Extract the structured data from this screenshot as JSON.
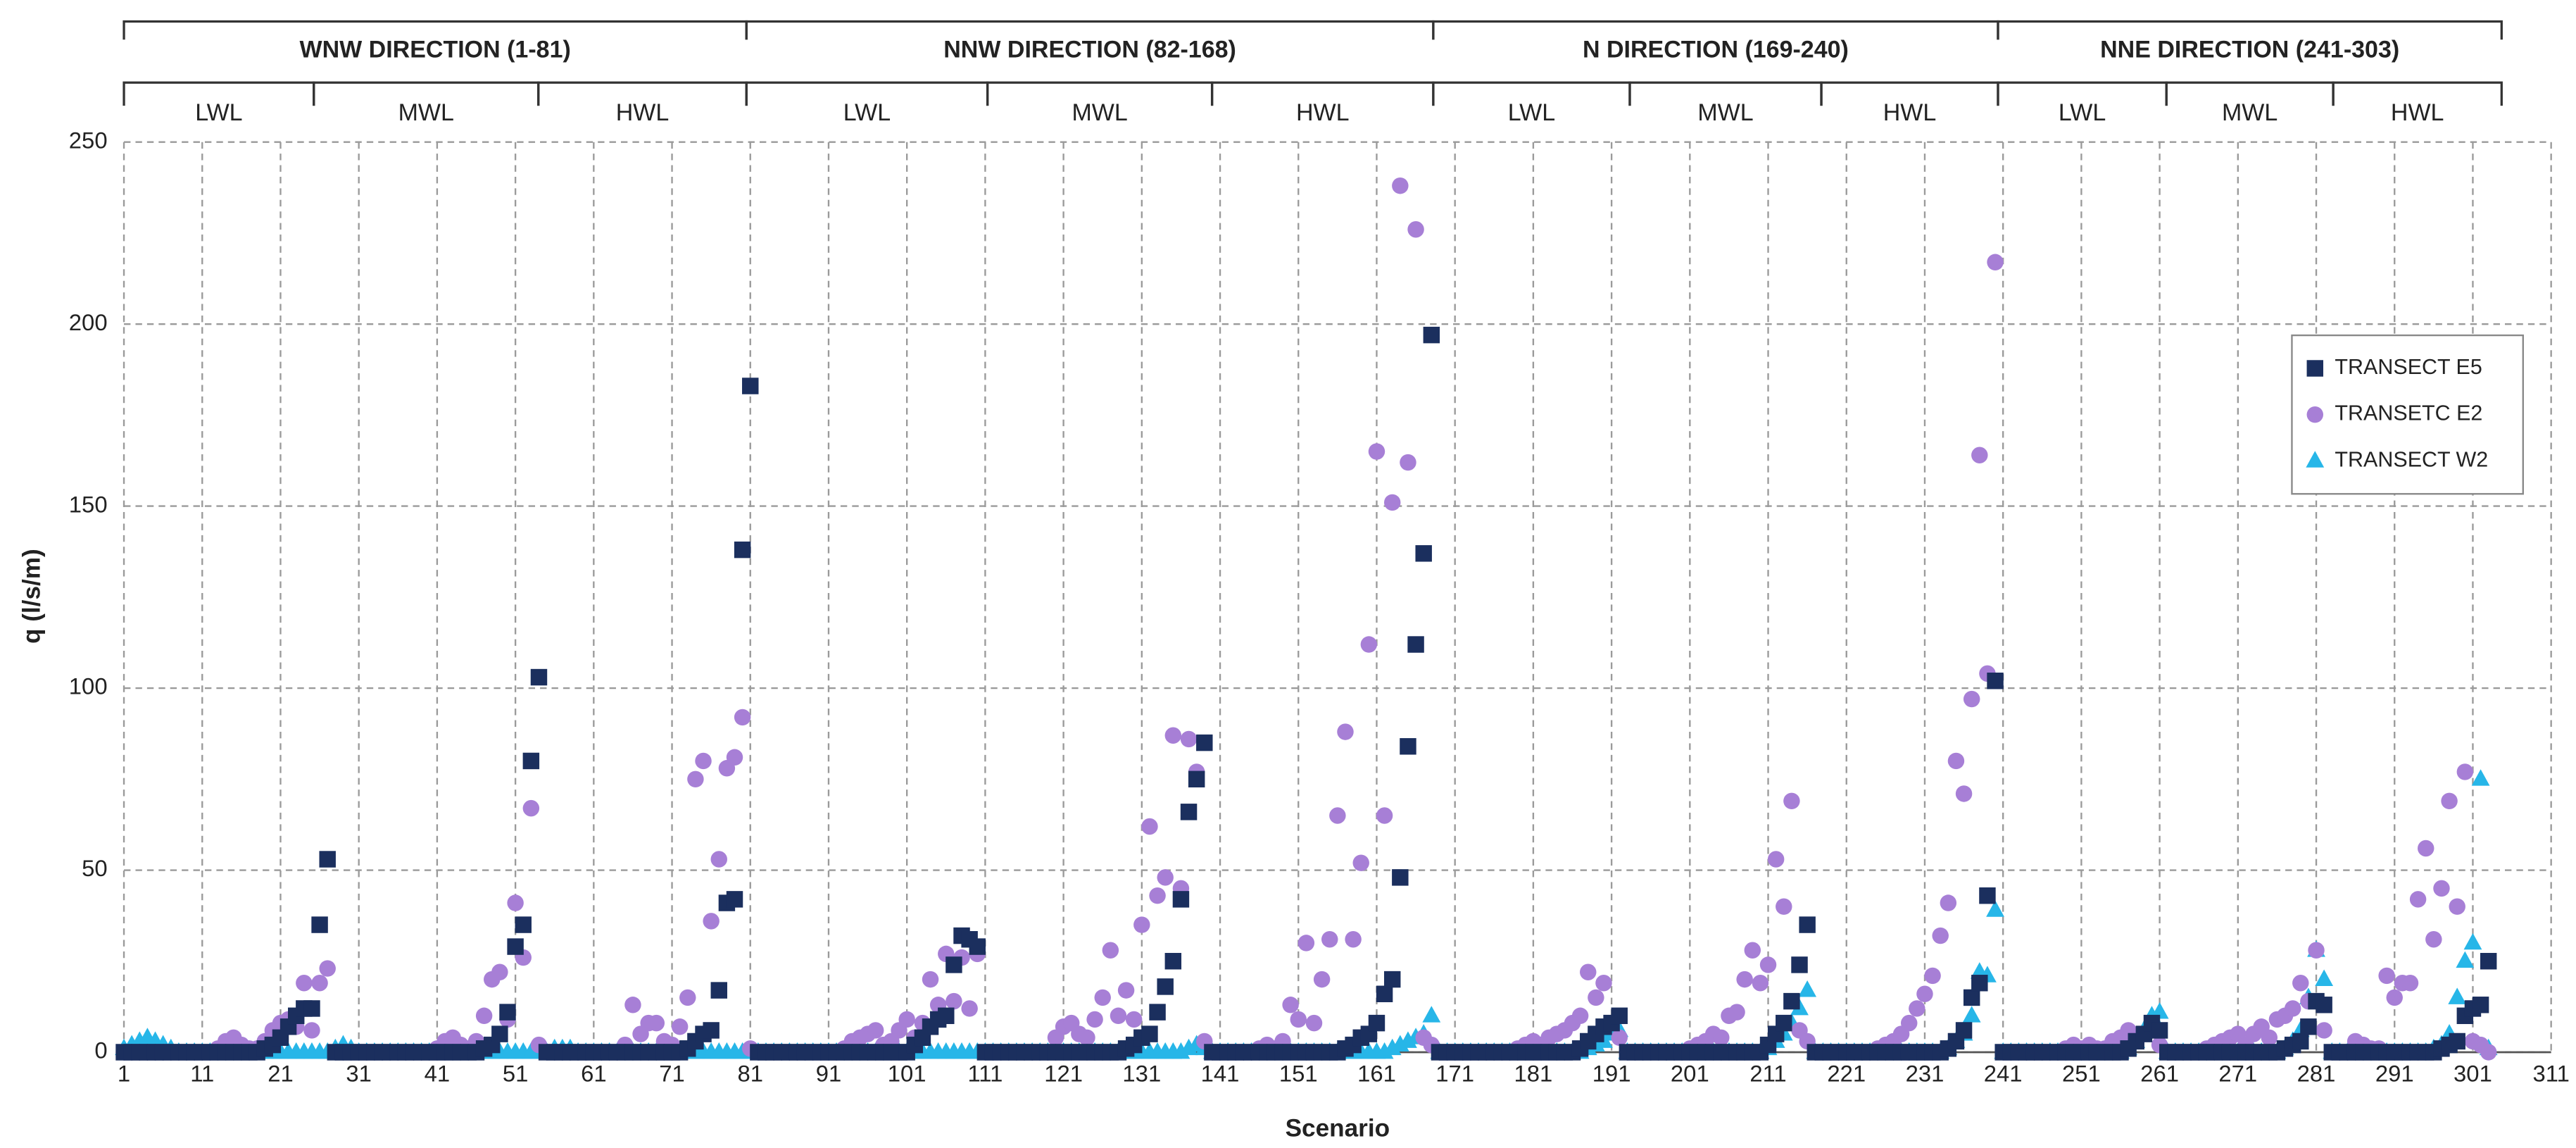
{
  "chart_data": {
    "type": "scatter",
    "xlabel": "Scenario",
    "ylabel": "q (l/s/m)",
    "xlim": [
      1,
      311
    ],
    "xticks": [
      1,
      11,
      21,
      31,
      41,
      51,
      61,
      71,
      81,
      91,
      101,
      111,
      121,
      131,
      141,
      151,
      161,
      171,
      181,
      191,
      201,
      211,
      221,
      231,
      241,
      251,
      261,
      271,
      281,
      291,
      301,
      311
    ],
    "ylim": [
      0,
      250
    ],
    "yticks": [
      0,
      50,
      100,
      150,
      200,
      250
    ],
    "grid": true,
    "legend_position": "right",
    "groups": [
      {
        "label": "WNW DIRECTION (1-81)",
        "levels": [
          "LWL",
          "MWL",
          "HWL"
        ]
      },
      {
        "label": "NNW DIRECTION (82-168)",
        "levels": [
          "LWL",
          "MWL",
          "HWL"
        ]
      },
      {
        "label": "N DIRECTION (169-240)",
        "levels": [
          "LWL",
          "MWL",
          "HWL"
        ]
      },
      {
        "label": "NNE DIRECTION (241-303)",
        "levels": [
          "LWL",
          "MWL",
          "HWL"
        ]
      }
    ],
    "x": [
      1,
      2,
      3,
      4,
      5,
      6,
      7,
      8,
      9,
      10,
      11,
      12,
      13,
      14,
      15,
      16,
      17,
      18,
      19,
      20,
      21,
      22,
      23,
      24,
      25,
      26,
      27,
      28,
      29,
      30,
      31,
      32,
      33,
      34,
      35,
      36,
      37,
      38,
      39,
      40,
      41,
      42,
      43,
      44,
      45,
      46,
      47,
      48,
      49,
      50,
      51,
      52,
      53,
      54,
      55,
      56,
      57,
      58,
      59,
      60,
      61,
      62,
      63,
      64,
      65,
      66,
      67,
      68,
      69,
      70,
      71,
      72,
      73,
      74,
      75,
      76,
      77,
      78,
      79,
      80,
      81,
      82,
      83,
      84,
      85,
      86,
      87,
      88,
      89,
      90,
      91,
      92,
      93,
      94,
      95,
      96,
      97,
      98,
      99,
      100,
      101,
      102,
      103,
      104,
      105,
      106,
      107,
      108,
      109,
      110,
      111,
      112,
      113,
      114,
      115,
      116,
      117,
      118,
      119,
      120,
      121,
      122,
      123,
      124,
      125,
      126,
      127,
      128,
      129,
      130,
      131,
      132,
      133,
      134,
      135,
      136,
      137,
      138,
      139,
      140,
      141,
      142,
      143,
      144,
      145,
      146,
      147,
      148,
      149,
      150,
      151,
      152,
      153,
      154,
      155,
      156,
      157,
      158,
      159,
      160,
      161,
      162,
      163,
      164,
      165,
      166,
      167,
      168,
      169,
      170,
      171,
      172,
      173,
      174,
      175,
      176,
      177,
      178,
      179,
      180,
      181,
      182,
      183,
      184,
      185,
      186,
      187,
      188,
      189,
      190,
      191,
      192,
      193,
      194,
      195,
      196,
      197,
      198,
      199,
      200,
      201,
      202,
      203,
      204,
      205,
      206,
      207,
      208,
      209,
      210,
      211,
      212,
      213,
      214,
      215,
      216,
      217,
      218,
      219,
      220,
      221,
      222,
      223,
      224,
      225,
      226,
      227,
      228,
      229,
      230,
      231,
      232,
      233,
      234,
      235,
      236,
      237,
      238,
      239,
      240,
      241,
      242,
      243,
      244,
      245,
      246,
      247,
      248,
      249,
      250,
      251,
      252,
      253,
      254,
      255,
      256,
      257,
      258,
      259,
      260,
      261,
      262,
      263,
      264,
      265,
      266,
      267,
      268,
      269,
      270,
      271,
      272,
      273,
      274,
      275,
      276,
      277,
      278,
      279,
      280,
      281,
      282,
      283,
      284,
      285,
      286,
      287,
      288,
      289,
      290,
      291,
      292,
      293,
      294,
      295,
      296,
      297,
      298,
      299,
      300,
      301,
      302,
      303
    ],
    "series": [
      {
        "name": "TRANSECT E5",
        "color": "#1b2f5e",
        "marker": "square",
        "values": [
          0,
          0,
          0,
          0,
          0,
          0,
          0,
          0,
          0,
          0,
          0,
          0,
          0,
          0,
          0,
          0,
          0,
          0,
          1,
          2,
          4,
          7,
          10,
          12,
          12,
          35,
          53,
          0,
          0,
          0,
          0,
          0,
          0,
          0,
          0,
          0,
          0,
          0,
          0,
          0,
          0,
          0,
          0,
          0,
          0,
          0,
          1,
          2,
          5,
          11,
          29,
          35,
          80,
          103,
          0,
          0,
          0,
          0,
          0,
          0,
          0,
          0,
          0,
          0,
          0,
          0,
          0,
          0,
          0,
          0,
          0,
          0,
          1,
          3,
          5,
          6,
          17,
          41,
          42,
          138,
          183,
          0,
          0,
          0,
          0,
          0,
          0,
          0,
          0,
          0,
          0,
          0,
          0,
          0,
          0,
          0,
          0,
          0,
          0,
          0,
          0,
          2,
          4,
          7,
          9,
          10,
          24,
          32,
          31,
          29,
          0,
          0,
          0,
          0,
          0,
          0,
          0,
          0,
          0,
          0,
          0,
          0,
          0,
          0,
          0,
          0,
          0,
          0,
          1,
          2,
          4,
          5,
          11,
          18,
          25,
          42,
          66,
          75,
          85,
          0,
          0,
          0,
          0,
          0,
          0,
          0,
          0,
          0,
          0,
          0,
          0,
          0,
          0,
          0,
          0,
          0,
          1,
          2,
          4,
          5,
          8,
          16,
          20,
          48,
          84,
          112,
          137,
          197,
          0,
          0,
          0,
          0,
          0,
          0,
          0,
          0,
          0,
          0,
          0,
          0,
          0,
          0,
          0,
          0,
          0,
          0,
          1,
          3,
          5,
          7,
          8,
          10,
          0,
          0,
          0,
          0,
          0,
          0,
          0,
          0,
          0,
          0,
          0,
          0,
          0,
          0,
          0,
          0,
          0,
          0,
          2,
          5,
          8,
          14,
          24,
          35,
          0,
          0,
          0,
          0,
          0,
          0,
          0,
          0,
          0,
          0,
          0,
          0,
          0,
          0,
          0,
          0,
          0,
          1,
          3,
          6,
          15,
          19,
          43,
          102,
          0,
          0,
          0,
          0,
          0,
          0,
          0,
          0,
          0,
          0,
          0,
          0,
          0,
          0,
          0,
          0,
          1,
          3,
          5,
          8,
          6,
          0,
          0,
          0,
          0,
          0,
          0,
          0,
          0,
          0,
          0,
          0,
          0,
          0,
          0,
          0,
          1,
          2,
          3,
          7,
          14,
          13,
          0,
          0,
          0,
          0,
          0,
          0,
          0,
          0,
          0,
          0,
          0,
          0,
          0,
          0,
          1,
          2,
          3,
          10,
          12,
          13,
          25
        ]
      },
      {
        "name": "TRANSETC E2",
        "color": "#a77fd6",
        "marker": "circle",
        "values": [
          0,
          0,
          0,
          0,
          0,
          0,
          0,
          0,
          0,
          0,
          0,
          0,
          1,
          3,
          4,
          2,
          1,
          1,
          3,
          6,
          8,
          9,
          7,
          19,
          6,
          19,
          23,
          0,
          0,
          0,
          0,
          0,
          0,
          0,
          0,
          0,
          0,
          0,
          0,
          0,
          1,
          3,
          4,
          2,
          1,
          3,
          10,
          20,
          22,
          9,
          41,
          26,
          67,
          2,
          0,
          0,
          0,
          0,
          0,
          0,
          0,
          0,
          0,
          0,
          2,
          13,
          5,
          8,
          8,
          3,
          2,
          7,
          15,
          75,
          80,
          36,
          53,
          78,
          81,
          92,
          1,
          0,
          0,
          0,
          0,
          0,
          0,
          0,
          0,
          0,
          0,
          0,
          1,
          3,
          4,
          5,
          6,
          2,
          3,
          6,
          9,
          4,
          8,
          20,
          13,
          27,
          14,
          26,
          12,
          27,
          0,
          0,
          0,
          0,
          0,
          0,
          0,
          0,
          0,
          4,
          7,
          8,
          5,
          4,
          9,
          15,
          28,
          10,
          17,
          9,
          35,
          62,
          43,
          48,
          87,
          45,
          86,
          77,
          3,
          0,
          0,
          0,
          0,
          0,
          0,
          1,
          2,
          1,
          3,
          13,
          9,
          30,
          8,
          20,
          31,
          65,
          88,
          31,
          52,
          112,
          165,
          65,
          151,
          238,
          162,
          226,
          4,
          2,
          0,
          0,
          0,
          0,
          0,
          0,
          0,
          0,
          0,
          0,
          1,
          2,
          3,
          2,
          4,
          5,
          6,
          8,
          10,
          22,
          15,
          19,
          8,
          4,
          0,
          0,
          0,
          0,
          0,
          0,
          0,
          0,
          1,
          2,
          3,
          5,
          4,
          10,
          11,
          20,
          28,
          19,
          24,
          53,
          40,
          69,
          6,
          3,
          0,
          0,
          0,
          0,
          0,
          0,
          0,
          0,
          1,
          2,
          3,
          5,
          8,
          12,
          16,
          21,
          32,
          41,
          80,
          71,
          97,
          164,
          104,
          217,
          0,
          0,
          0,
          0,
          0,
          0,
          0,
          0,
          1,
          2,
          1,
          2,
          1,
          1,
          3,
          4,
          6,
          3,
          5,
          6,
          2,
          0,
          0,
          0,
          0,
          0,
          1,
          2,
          3,
          4,
          5,
          2,
          5,
          7,
          4,
          9,
          10,
          12,
          19,
          14,
          28,
          6,
          0,
          0,
          0,
          3,
          2,
          1,
          1,
          21,
          15,
          19,
          19,
          42,
          56,
          31,
          45,
          69,
          40,
          77,
          3,
          2,
          0
        ]
      },
      {
        "name": "TRANSECT W2",
        "color": "#27b6e8",
        "marker": "triangle",
        "values": [
          1,
          2,
          3,
          4,
          3,
          2,
          1,
          0,
          0,
          0,
          0,
          0,
          0,
          0,
          0,
          0,
          0,
          0,
          0,
          0,
          0,
          0,
          0,
          0,
          0,
          0,
          0,
          1,
          2,
          1,
          0,
          0,
          0,
          0,
          0,
          0,
          0,
          0,
          0,
          0,
          0,
          0,
          0,
          0,
          0,
          0,
          0,
          0,
          0,
          0,
          0,
          0,
          0,
          0,
          0,
          1,
          1,
          1,
          0,
          0,
          0,
          0,
          0,
          0,
          0,
          0,
          0,
          0,
          0,
          0,
          0,
          0,
          0,
          0,
          0,
          0,
          0,
          0,
          0,
          0,
          0,
          0,
          0,
          0,
          0,
          0,
          0,
          0,
          0,
          0,
          0,
          0,
          0,
          0,
          0,
          0,
          0,
          0,
          0,
          0,
          0,
          0,
          0,
          0,
          0,
          0,
          0,
          0,
          0,
          0,
          0,
          0,
          0,
          0,
          0,
          0,
          0,
          0,
          0,
          0,
          0,
          0,
          0,
          0,
          0,
          0,
          0,
          0,
          0,
          0,
          0,
          0,
          0,
          0,
          0,
          0,
          1,
          2,
          1,
          0,
          0,
          0,
          0,
          0,
          0,
          0,
          0,
          0,
          0,
          0,
          0,
          0,
          0,
          0,
          0,
          0,
          0,
          0,
          0,
          0,
          0,
          0,
          1,
          2,
          3,
          4,
          5,
          10,
          0,
          0,
          0,
          0,
          0,
          0,
          0,
          0,
          0,
          0,
          0,
          0,
          0,
          0,
          0,
          0,
          0,
          0,
          0,
          1,
          2,
          3,
          5,
          6,
          0,
          0,
          0,
          0,
          0,
          0,
          0,
          0,
          0,
          0,
          0,
          0,
          0,
          0,
          0,
          0,
          0,
          0,
          1,
          3,
          5,
          8,
          12,
          17,
          0,
          0,
          0,
          0,
          0,
          0,
          0,
          0,
          0,
          0,
          0,
          0,
          0,
          0,
          0,
          0,
          0,
          1,
          3,
          5,
          10,
          22,
          21,
          39,
          0,
          0,
          0,
          0,
          0,
          0,
          0,
          0,
          0,
          0,
          0,
          0,
          0,
          0,
          0,
          0,
          1,
          3,
          6,
          10,
          11,
          0,
          0,
          0,
          0,
          0,
          0,
          0,
          0,
          0,
          0,
          0,
          0,
          0,
          0,
          0,
          1,
          3,
          6,
          15,
          28,
          20,
          0,
          0,
          0,
          0,
          0,
          0,
          0,
          0,
          0,
          0,
          0,
          0,
          0,
          1,
          2,
          5,
          15,
          25,
          30,
          75,
          1
        ]
      }
    ]
  }
}
